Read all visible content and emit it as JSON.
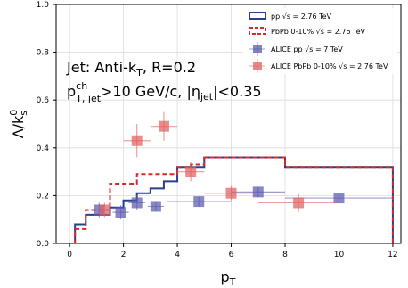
{
  "chart_data": {
    "type": "line",
    "xlabel": "p",
    "xlabel_sub": "T",
    "ylabel": "Λ/k",
    "ylabel_sup": "0",
    "ylabel_sub": "s",
    "xlim": [
      -0.5,
      12.3
    ],
    "ylim": [
      0.0,
      1.0
    ],
    "xticks": [
      0,
      2,
      4,
      6,
      8,
      10,
      12
    ],
    "yticks": [
      0.0,
      0.2,
      0.4,
      0.6,
      0.8,
      1.0
    ],
    "grid": true,
    "legend_position": "top-right",
    "annotations": {
      "line1": "Jet: Anti-k",
      "line1_sub": "T",
      "line1_rest": ", R=0.2",
      "line2_p": "p",
      "line2_sup": "ch",
      "line2_sub": "T, jet",
      "line2_mid": ">10 GeV/c, |η",
      "line2_sub2": "jet",
      "line2_end": "|<0.35"
    },
    "series": [
      {
        "name": "pp √s = 2.76 TeV",
        "kind": "step",
        "color": "#2b3f8f",
        "style": "solid",
        "edges": [
          0.2,
          0.6,
          1.0,
          1.5,
          2.0,
          2.5,
          3.0,
          3.5,
          4.0,
          4.5,
          5.0,
          6.0,
          7.0,
          8.0,
          10.0,
          12.0
        ],
        "values": [
          0.08,
          0.12,
          0.12,
          0.15,
          0.18,
          0.21,
          0.23,
          0.26,
          0.32,
          0.32,
          0.36,
          0.36,
          0.36,
          0.32,
          0.32
        ]
      },
      {
        "name": "PbPb 0-10% √s = 2.76 TeV",
        "kind": "step",
        "color": "#d42a2a",
        "style": "dashed",
        "edges": [
          0.2,
          0.6,
          1.0,
          1.5,
          2.0,
          2.5,
          3.0,
          3.5,
          4.0,
          4.5,
          5.0,
          6.0,
          7.0,
          8.0,
          10.0,
          12.0
        ],
        "values": [
          0.06,
          0.14,
          0.14,
          0.25,
          0.25,
          0.29,
          0.29,
          0.29,
          0.32,
          0.33,
          0.36,
          0.36,
          0.36,
          0.32,
          0.32
        ]
      },
      {
        "name": "ALICE pp √s = 7 TeV",
        "kind": "points",
        "color": "#5a5aae",
        "points": [
          {
            "x": 1.1,
            "y": 0.14,
            "xerr": 0.35,
            "yerr": 0.03
          },
          {
            "x": 1.9,
            "y": 0.13,
            "xerr": 0.3,
            "yerr": 0.03
          },
          {
            "x": 2.5,
            "y": 0.17,
            "xerr": 0.3,
            "yerr": 0.03
          },
          {
            "x": 3.2,
            "y": 0.155,
            "xerr": 0.3,
            "yerr": 0.02
          },
          {
            "x": 4.8,
            "y": 0.175,
            "xerr": 1.2,
            "yerr": 0.02
          },
          {
            "x": 7.0,
            "y": 0.215,
            "xerr": 1.0,
            "yerr": 0.02
          },
          {
            "x": 10.0,
            "y": 0.19,
            "xerr": 2.0,
            "yerr": 0.02
          }
        ]
      },
      {
        "name": "ALICE PbPb 0-10% √s = 2.76 TeV",
        "kind": "points",
        "color": "#e06060",
        "points": [
          {
            "x": 1.3,
            "y": 0.14,
            "xerr": 0.5,
            "yerr": 0.03
          },
          {
            "x": 2.5,
            "y": 0.43,
            "xerr": 0.5,
            "yerr": 0.07
          },
          {
            "x": 3.5,
            "y": 0.49,
            "xerr": 0.5,
            "yerr": 0.06
          },
          {
            "x": 4.5,
            "y": 0.3,
            "xerr": 0.5,
            "yerr": 0.04
          },
          {
            "x": 6.0,
            "y": 0.21,
            "xerr": 1.0,
            "yerr": 0.03
          },
          {
            "x": 8.5,
            "y": 0.17,
            "xerr": 1.5,
            "yerr": 0.04
          }
        ]
      }
    ]
  }
}
